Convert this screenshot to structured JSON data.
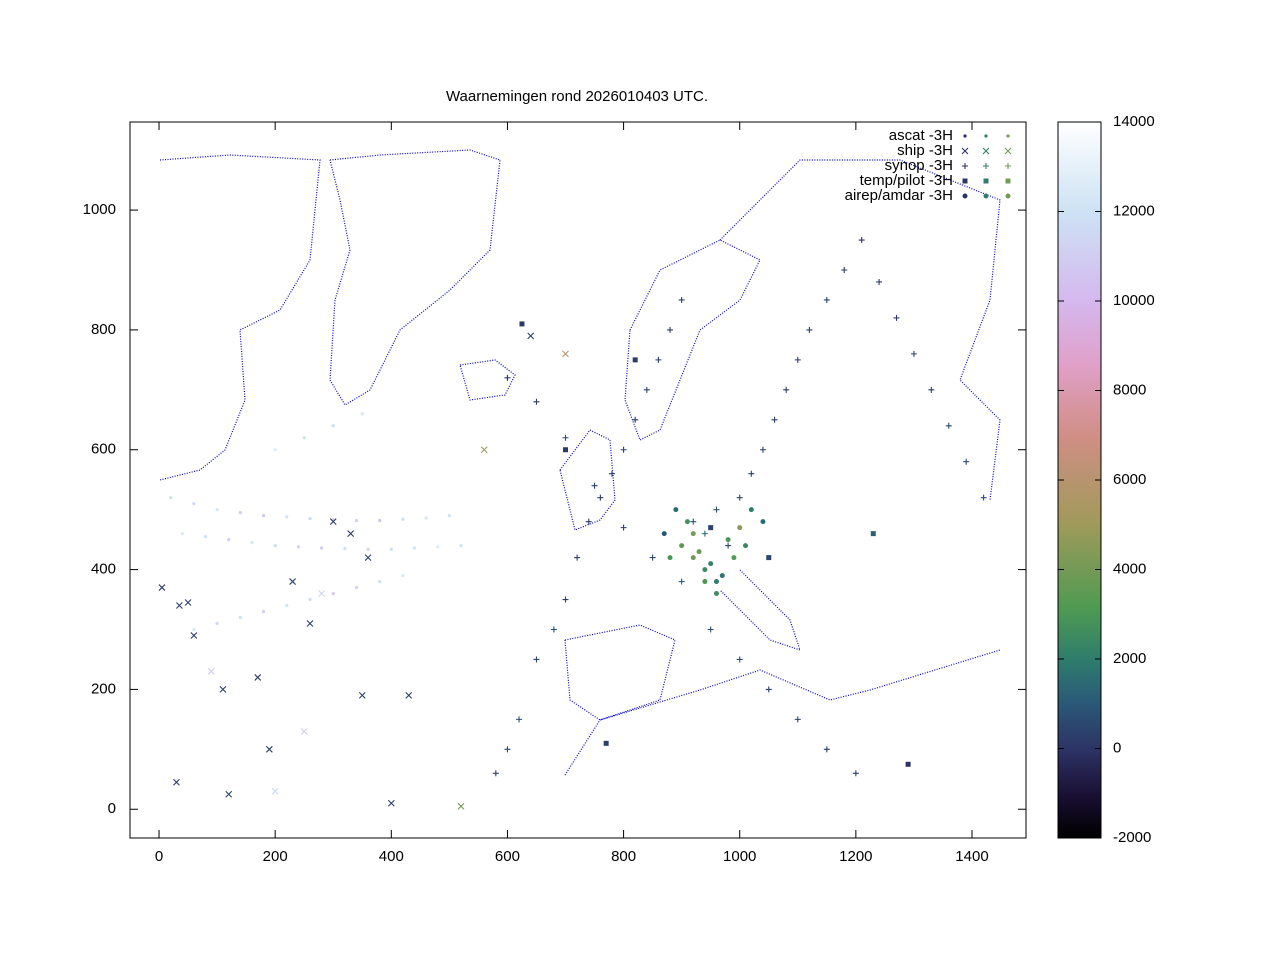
{
  "chart_data": {
    "type": "scatter",
    "title": "Waarnemingen rond 2026010403 UTC.",
    "xlim": [
      -50,
      1493
    ],
    "ylim": [
      -48,
      1147
    ],
    "xticks": [
      0,
      200,
      400,
      600,
      800,
      1000,
      1200,
      1400
    ],
    "yticks": [
      0,
      200,
      400,
      600,
      800,
      1000
    ],
    "cblim": [
      -2000,
      14000
    ],
    "cbticks": [
      -2000,
      0,
      2000,
      4000,
      6000,
      8000,
      10000,
      12000,
      14000
    ],
    "legend": "top-right",
    "series": [
      {
        "name": "ascat -3H",
        "marker": "dot",
        "x": [
          20,
          60,
          100,
          140,
          180,
          220,
          260,
          300,
          340,
          380,
          420,
          460,
          500,
          40,
          80,
          120,
          160,
          200,
          240,
          280,
          320,
          360,
          400,
          440,
          480,
          520,
          60,
          100,
          140,
          180,
          220,
          260,
          300,
          340,
          380,
          420,
          200,
          250,
          300,
          350
        ],
        "values": [
          520,
          510,
          500,
          495,
          490,
          488,
          485,
          483,
          482,
          482,
          484,
          486,
          490,
          460,
          455,
          450,
          445,
          440,
          438,
          436,
          435,
          434,
          434,
          436,
          438,
          440,
          300,
          310,
          320,
          330,
          340,
          350,
          360,
          370,
          380,
          390,
          600,
          620,
          640,
          660
        ],
        "z": [
          12000,
          11500,
          12200,
          11000,
          10800,
          12000,
          11600,
          10500,
          11200,
          10600,
          11800,
          12300,
          12000,
          12400,
          11900,
          11000,
          12100,
          11700,
          11300,
          10900,
          12000,
          11400,
          11800,
          12200,
          12500,
          12000,
          12300,
          11500,
          11900,
          11100,
          12000,
          11700,
          10700,
          11300,
          11900,
          12400,
          12600,
          12000,
          11800,
          12200
        ]
      },
      {
        "name": "ship -3H",
        "marker": "cross",
        "x": [
          5,
          30,
          50,
          90,
          120,
          170,
          200,
          230,
          260,
          300,
          330,
          360,
          400,
          430,
          250,
          190,
          110,
          60,
          350,
          280,
          520,
          560,
          640,
          700,
          35
        ],
        "values": [
          370,
          45,
          345,
          230,
          25,
          220,
          30,
          380,
          310,
          480,
          460,
          420,
          10,
          190,
          130,
          100,
          200,
          290,
          190,
          360,
          5,
          600,
          790,
          760,
          340
        ],
        "z": [
          200,
          100,
          300,
          11000,
          400,
          200,
          11500,
          300,
          250,
          200,
          100,
          300,
          400,
          200,
          11000,
          300,
          250,
          200,
          300,
          11200,
          4000,
          5000,
          200,
          6000,
          300
        ]
      },
      {
        "name": "synop -3H",
        "marker": "plus",
        "x": [
          580,
          600,
          620,
          650,
          680,
          700,
          720,
          740,
          760,
          780,
          800,
          820,
          840,
          860,
          880,
          900,
          920,
          940,
          960,
          980,
          1000,
          1020,
          1040,
          1060,
          1080,
          1100,
          1120,
          1150,
          1180,
          1210,
          1240,
          1270,
          1300,
          1330,
          1360,
          1390,
          1420,
          600,
          650,
          700,
          750,
          800,
          850,
          900,
          950,
          1000,
          1050,
          1100,
          1150,
          1200
        ],
        "values": [
          60,
          100,
          150,
          250,
          300,
          350,
          420,
          480,
          520,
          560,
          600,
          650,
          700,
          750,
          800,
          850,
          480,
          460,
          500,
          440,
          520,
          560,
          600,
          650,
          700,
          750,
          800,
          850,
          900,
          950,
          880,
          820,
          760,
          700,
          640,
          580,
          520,
          720,
          680,
          620,
          540,
          470,
          420,
          380,
          300,
          250,
          200,
          150,
          100,
          60
        ],
        "z": [
          300,
          500,
          700,
          400,
          600,
          200,
          300,
          100,
          200,
          500,
          300,
          200,
          400,
          100,
          200,
          300,
          800,
          1500,
          900,
          600,
          400,
          300,
          200,
          300,
          200,
          100,
          200,
          300,
          200,
          100,
          300,
          200,
          400,
          300,
          500,
          600,
          700,
          100,
          200,
          600,
          400,
          300,
          500,
          1200,
          800,
          600,
          400,
          300,
          200,
          300
        ]
      },
      {
        "name": "temp/pilot -3H",
        "marker": "square",
        "x": [
          625,
          770,
          820,
          1050,
          1230,
          1290,
          950,
          700
        ],
        "values": [
          810,
          110,
          750,
          420,
          460,
          75,
          470,
          600
        ],
        "z": [
          100,
          300,
          200,
          500,
          1200,
          0,
          400,
          100
        ]
      },
      {
        "name": "airep/amdar -3H",
        "marker": "circle",
        "x": [
          880,
          900,
          920,
          940,
          960,
          980,
          1000,
          930,
          950,
          970,
          910,
          890,
          990,
          1010,
          870,
          1020,
          1040,
          960,
          940,
          920
        ],
        "values": [
          420,
          440,
          460,
          400,
          380,
          450,
          470,
          430,
          410,
          390,
          480,
          500,
          420,
          440,
          460,
          500,
          480,
          360,
          380,
          420
        ],
        "z": [
          3000,
          3500,
          4200,
          2500,
          2000,
          3000,
          4500,
          3800,
          2200,
          1800,
          2800,
          1500,
          3200,
          2400,
          1000,
          2000,
          1500,
          2600,
          3100,
          4000
        ]
      }
    ]
  }
}
